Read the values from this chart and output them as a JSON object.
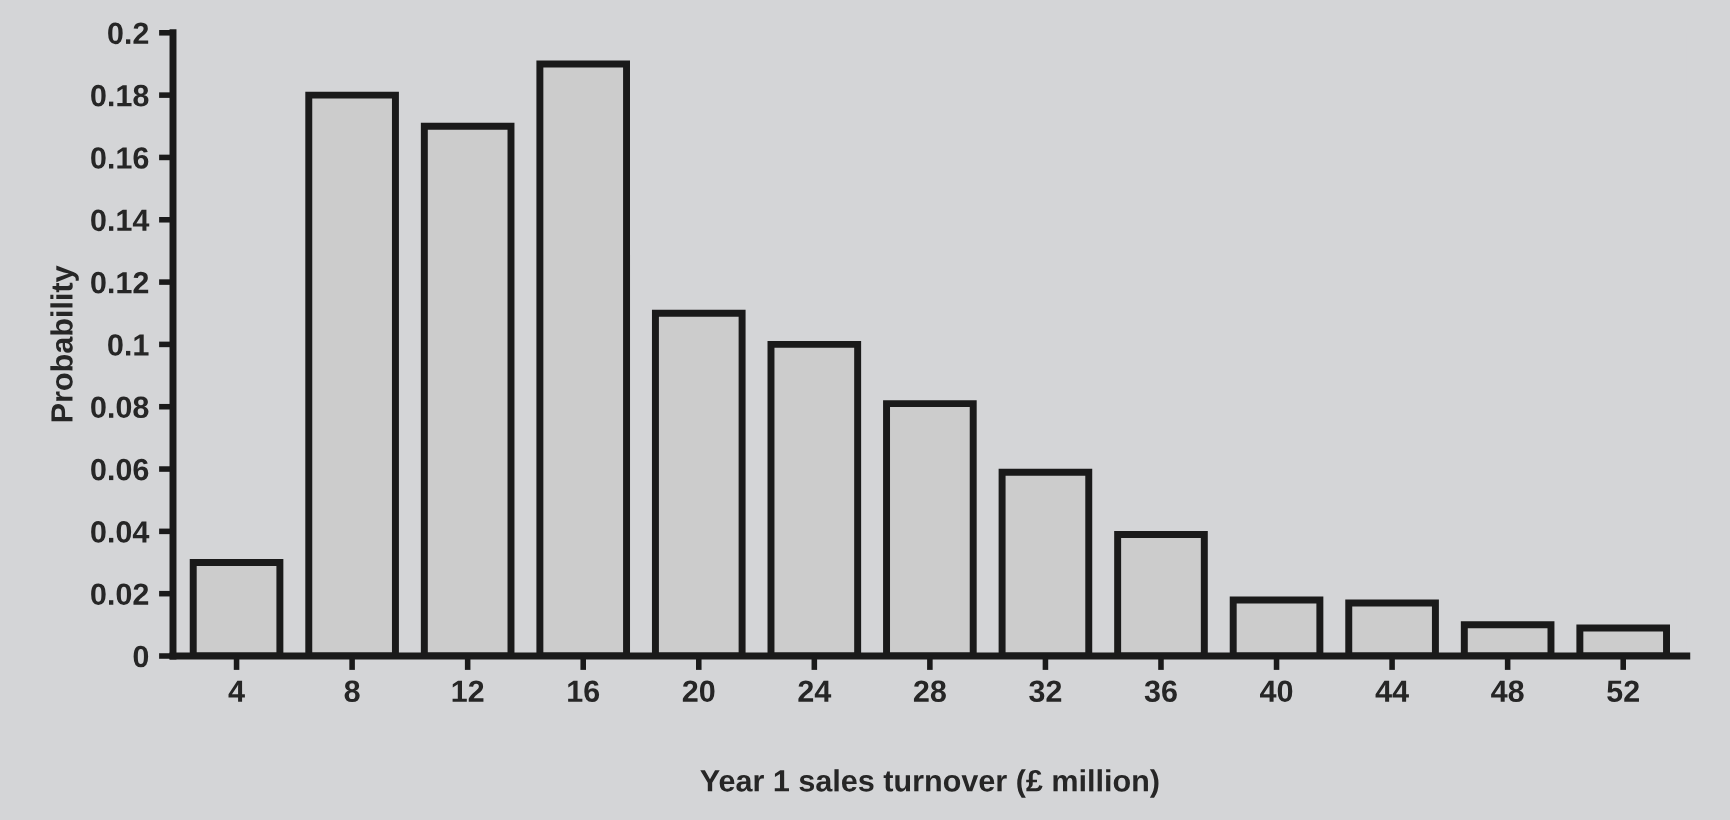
{
  "chart_data": {
    "type": "bar",
    "xlabel": "Year 1 sales turnover (£ million)",
    "ylabel": "Probability",
    "categories": [
      "4",
      "8",
      "12",
      "16",
      "20",
      "24",
      "28",
      "32",
      "36",
      "40",
      "44",
      "48",
      "52"
    ],
    "values": [
      0.03,
      0.18,
      0.17,
      0.19,
      0.11,
      0.1,
      0.081,
      0.059,
      0.039,
      0.018,
      0.017,
      0.01,
      0.009
    ],
    "color": "#cccccc",
    "ylim": [
      0,
      0.2
    ],
    "yticks": [
      0,
      0.02,
      0.04,
      0.06,
      0.08,
      0.1,
      0.12,
      0.14,
      0.16,
      0.18,
      0.2
    ],
    "grid": false
  }
}
